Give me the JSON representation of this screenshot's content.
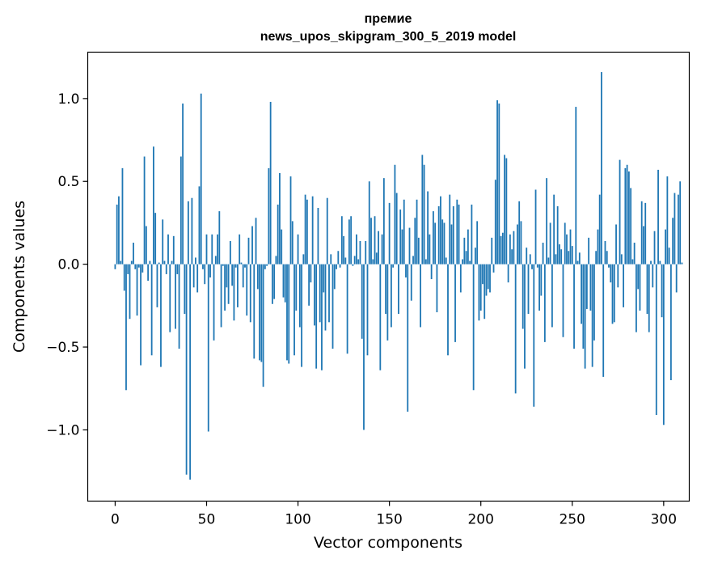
{
  "chart_data": {
    "type": "bar",
    "title_line1": "премие",
    "title_line2": "news_upos_skipgram_300_5_2019 model",
    "xlabel": "Vector components",
    "ylabel": "Components values",
    "xlim": [
      -15,
      314
    ],
    "ylim": [
      -1.43,
      1.28
    ],
    "xticks": [
      0,
      50,
      100,
      150,
      200,
      250,
      300
    ],
    "yticks": [
      1.0,
      0.5,
      0.0,
      -0.5,
      -1.0
    ],
    "ytick_labels": [
      "1.0",
      "0.5",
      "0.0",
      "−0.5",
      "−1.0"
    ],
    "bar_color": "#1f77b4",
    "grid": false,
    "values": [
      -0.03,
      0.36,
      0.41,
      0.02,
      0.58,
      -0.16,
      -0.76,
      -0.06,
      -0.33,
      0.02,
      0.13,
      -0.03,
      -0.31,
      -0.02,
      -0.61,
      -0.05,
      0.65,
      0.23,
      -0.1,
      0.02,
      -0.55,
      0.71,
      0.31,
      -0.26,
      0.01,
      -0.62,
      0.27,
      0.02,
      -0.06,
      0.18,
      -0.41,
      0.02,
      0.17,
      -0.39,
      -0.06,
      -0.51,
      0.65,
      0.97,
      -0.3,
      -1.27,
      0.38,
      -1.3,
      0.4,
      -0.14,
      0.04,
      -0.17,
      0.47,
      1.03,
      -0.03,
      -0.12,
      0.18,
      -1.01,
      -0.08,
      0.18,
      -0.46,
      0.05,
      0.18,
      0.32,
      -0.38,
      -0.01,
      -0.28,
      -0.14,
      -0.24,
      0.14,
      -0.13,
      -0.34,
      -0.02,
      -0.26,
      0.18,
      0.01,
      -0.14,
      -0.02,
      -0.31,
      0.16,
      -0.35,
      0.23,
      -0.57,
      0.28,
      -0.15,
      -0.58,
      -0.59,
      -0.74,
      -0.03,
      -0.01,
      0.58,
      0.98,
      -0.24,
      -0.21,
      0.05,
      0.36,
      0.55,
      0.21,
      -0.2,
      -0.23,
      -0.58,
      -0.6,
      0.53,
      0.26,
      -0.55,
      -0.28,
      0.18,
      -0.38,
      -0.62,
      0.06,
      0.42,
      0.39,
      -0.25,
      -0.11,
      0.41,
      -0.37,
      -0.63,
      0.34,
      -0.35,
      -0.64,
      -0.17,
      -0.4,
      0.4,
      -0.35,
      0.06,
      -0.51,
      -0.15,
      -0.03,
      0.08,
      -0.02,
      0.29,
      0.17,
      0.04,
      -0.54,
      0.27,
      0.29,
      -0.01,
      0.05,
      0.18,
      0.03,
      0.14,
      -0.45,
      -1.0,
      0.14,
      -0.55,
      0.5,
      0.28,
      0.03,
      0.29,
      0.07,
      0.2,
      -0.64,
      0.18,
      0.52,
      -0.3,
      -0.46,
      0.37,
      -0.38,
      -0.02,
      0.6,
      0.43,
      -0.3,
      0.33,
      0.21,
      0.39,
      -0.08,
      -0.89,
      0.22,
      -0.22,
      0.05,
      0.28,
      0.39,
      0.16,
      -0.38,
      0.66,
      0.6,
      0.03,
      0.44,
      0.18,
      -0.09,
      0.32,
      0.25,
      -0.29,
      0.35,
      0.41,
      0.27,
      0.25,
      0.04,
      -0.55,
      0.42,
      0.24,
      0.35,
      -0.47,
      0.39,
      0.36,
      -0.17,
      0.03,
      0.16,
      0.08,
      0.21,
      0.02,
      0.36,
      -0.76,
      0.1,
      0.26,
      -0.34,
      -0.28,
      -0.12,
      -0.33,
      -0.19,
      -0.15,
      -0.17,
      0.16,
      -0.05,
      0.51,
      0.99,
      0.97,
      0.17,
      0.19,
      0.66,
      0.64,
      -0.11,
      0.18,
      0.09,
      0.2,
      -0.78,
      0.24,
      0.38,
      0.26,
      -0.39,
      -0.63,
      0.1,
      -0.3,
      0.06,
      -0.03,
      -0.86,
      0.45,
      -0.02,
      -0.28,
      -0.19,
      0.13,
      -0.47,
      0.52,
      0.04,
      0.25,
      -0.38,
      0.42,
      0.06,
      0.35,
      0.12,
      0.09,
      -0.44,
      0.25,
      0.18,
      0.08,
      0.21,
      0.11,
      -0.51,
      0.95,
      0.02,
      0.07,
      -0.36,
      -0.51,
      -0.63,
      -0.27,
      0.16,
      -0.28,
      -0.62,
      -0.46,
      0.08,
      0.21,
      0.42,
      1.16,
      -0.68,
      0.14,
      0.08,
      -0.02,
      -0.11,
      -0.36,
      -0.35,
      0.24,
      -0.14,
      0.63,
      0.06,
      -0.26,
      0.58,
      0.6,
      0.56,
      0.46,
      0.03,
      0.13,
      -0.41,
      -0.15,
      -0.28,
      0.38,
      0.23,
      0.37,
      -0.3,
      -0.41,
      0.02,
      -0.14,
      0.2,
      -0.91,
      0.57,
      0.02,
      -0.32,
      -0.97,
      0.21,
      0.53,
      0.1,
      -0.7,
      0.28,
      0.43,
      -0.17,
      0.42,
      0.5,
      0.01
    ]
  }
}
